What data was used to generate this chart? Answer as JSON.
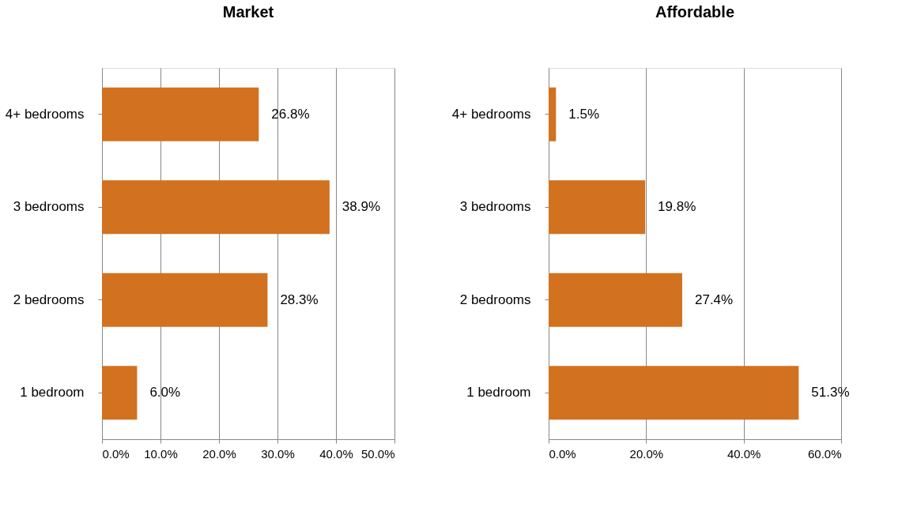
{
  "chart_data": [
    {
      "type": "bar",
      "title": "Market",
      "orientation": "horizontal",
      "categories": [
        "4+ bedrooms",
        "3 bedrooms",
        "2 bedrooms",
        "1 bedroom"
      ],
      "values": [
        26.8,
        38.9,
        28.3,
        6.0
      ],
      "value_labels": [
        "26.8%",
        "38.9%",
        "28.3%",
        "6.0%"
      ],
      "color": "#d2711f",
      "xlim": [
        0,
        50
      ],
      "xticks": [
        {
          "value": 0,
          "label": "0.0%"
        },
        {
          "value": 10,
          "label": "10.0%"
        },
        {
          "value": 20,
          "label": "20.0%"
        },
        {
          "value": 30,
          "label": "30.0%"
        },
        {
          "value": 40,
          "label": "40.0%"
        },
        {
          "value": 50,
          "label": "50.0%"
        }
      ],
      "grid": "x"
    },
    {
      "type": "bar",
      "title": "Affordable",
      "orientation": "horizontal",
      "categories": [
        "4+ bedrooms",
        "3 bedrooms",
        "2 bedrooms",
        "1 bedroom"
      ],
      "values": [
        1.5,
        19.8,
        27.4,
        51.3
      ],
      "value_labels": [
        "1.5%",
        "19.8%",
        "27.4%",
        "51.3%"
      ],
      "color": "#d2711f",
      "xlim": [
        0,
        60
      ],
      "xticks": [
        {
          "value": 0,
          "label": "0.0%"
        },
        {
          "value": 20,
          "label": "20.0%"
        },
        {
          "value": 40,
          "label": "40.0%"
        },
        {
          "value": 60,
          "label": "60.0%"
        }
      ],
      "grid": "x"
    }
  ]
}
